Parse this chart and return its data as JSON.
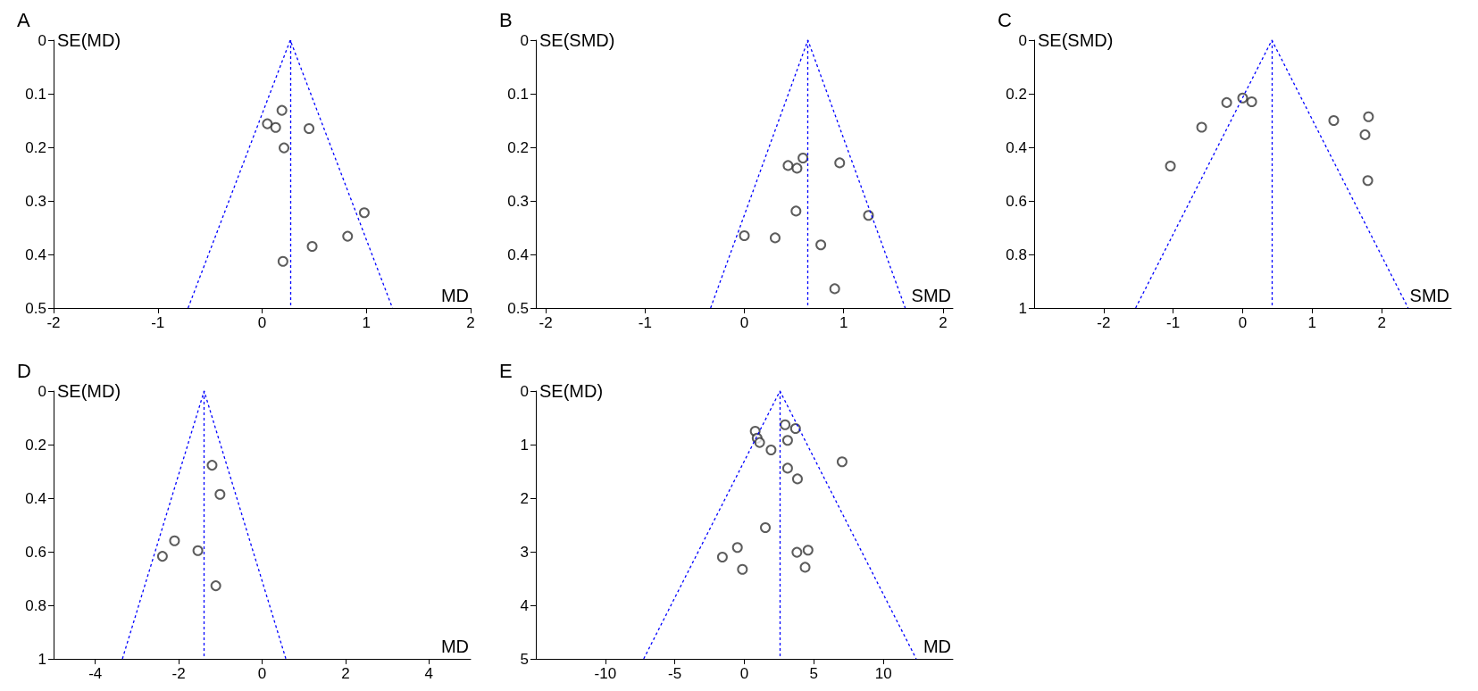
{
  "chart_data": [
    {
      "type": "scatter",
      "title": "A",
      "xlabel": "MD",
      "ylabel": "SE(MD)",
      "xlim": [
        -2,
        2
      ],
      "xticks": [
        -2,
        -1,
        0,
        1,
        2
      ],
      "ylim": [
        0.5,
        0
      ],
      "yticks": [
        0,
        0.1,
        0.2,
        0.3,
        0.4,
        0.5
      ],
      "marker": "circle",
      "series": [
        {
          "color": "#333333",
          "x": [
            0.19,
            0.05,
            0.13,
            0.45,
            0.21,
            0.98,
            0.82,
            0.48,
            0.2
          ],
          "values": [
            0.131,
            0.156,
            0.163,
            0.165,
            0.201,
            0.322,
            0.366,
            0.385,
            0.413
          ]
        },
        {
          "type": "line",
          "color": "#0000ff",
          "line_style": "dashed",
          "marker": "none",
          "x": [
            -0.71,
            0.27,
            1.25
          ],
          "values": [
            0.5,
            0,
            0.5
          ]
        }
      ],
      "ref_lines": [
        {
          "axis": "x",
          "value": 0.27,
          "color": "#0000ff",
          "line_style": "dashed"
        }
      ]
    },
    {
      "type": "scatter",
      "title": "B",
      "xlabel": "SMD",
      "ylabel": "SE(SMD)",
      "xlim": [
        -2.1,
        2.1
      ],
      "xticks": [
        -2,
        -1,
        0,
        1,
        2
      ],
      "ylim": [
        0.5,
        0
      ],
      "yticks": [
        0,
        0.1,
        0.2,
        0.3,
        0.4,
        0.5
      ],
      "marker": "circle",
      "series": [
        {
          "color": "#333333",
          "x": [
            0.59,
            0.44,
            0.53,
            0.96,
            0.52,
            1.25,
            0.0,
            0.31,
            0.77,
            0.91
          ],
          "values": [
            0.22,
            0.234,
            0.239,
            0.229,
            0.319,
            0.327,
            0.365,
            0.369,
            0.382,
            0.464
          ]
        },
        {
          "type": "line",
          "color": "#0000ff",
          "line_style": "dashed",
          "marker": "none",
          "x": [
            -0.34,
            0.64,
            1.62
          ],
          "values": [
            0.5,
            0,
            0.5
          ]
        }
      ],
      "ref_lines": [
        {
          "axis": "x",
          "value": 0.64,
          "color": "#0000ff",
          "line_style": "dashed"
        }
      ]
    },
    {
      "type": "scatter",
      "title": "C",
      "xlabel": "SMD",
      "ylabel": "SE(SMD)",
      "xlim": [
        -3,
        3
      ],
      "xticks": [
        -2,
        -1,
        0,
        1,
        2
      ],
      "ylim": [
        1,
        0
      ],
      "yticks": [
        0,
        0.2,
        0.4,
        0.6,
        0.8,
        1
      ],
      "marker": "circle",
      "series": [
        {
          "color": "#333333",
          "x": [
            0.0,
            -0.23,
            0.13,
            -0.59,
            -1.04,
            1.31,
            1.81,
            1.76,
            1.8
          ],
          "values": [
            0.216,
            0.233,
            0.23,
            0.325,
            0.47,
            0.3,
            0.286,
            0.353,
            0.524
          ]
        },
        {
          "type": "line",
          "color": "#0000ff",
          "line_style": "dashed",
          "marker": "none",
          "x": [
            -1.54,
            0.42,
            2.38
          ],
          "values": [
            1,
            0,
            1
          ]
        }
      ],
      "ref_lines": [
        {
          "axis": "x",
          "value": 0.42,
          "color": "#0000ff",
          "line_style": "dashed"
        }
      ]
    },
    {
      "type": "scatter",
      "title": "D",
      "xlabel": "MD",
      "ylabel": "SE(MD)",
      "xlim": [
        -5,
        5
      ],
      "xticks": [
        -4,
        -2,
        0,
        2,
        4
      ],
      "ylim": [
        1,
        0
      ],
      "yticks": [
        0,
        0.2,
        0.4,
        0.6,
        0.8,
        1
      ],
      "marker": "circle",
      "series": [
        {
          "color": "#333333",
          "x": [
            -1.2,
            -1.01,
            -2.1,
            -1.54,
            -2.39,
            -1.11
          ],
          "values": [
            0.277,
            0.386,
            0.559,
            0.596,
            0.617,
            0.727
          ]
        },
        {
          "type": "line",
          "color": "#0000ff",
          "line_style": "dashed",
          "marker": "none",
          "x": [
            -3.35,
            -1.39,
            0.57
          ],
          "values": [
            1,
            0,
            1
          ]
        }
      ],
      "ref_lines": [
        {
          "axis": "x",
          "value": -1.39,
          "color": "#0000ff",
          "line_style": "dashed"
        }
      ]
    },
    {
      "type": "scatter",
      "title": "E",
      "xlabel": "MD",
      "ylabel": "SE(MD)",
      "xlim": [
        -15,
        15
      ],
      "xticks": [
        -10,
        -5,
        0,
        5,
        10
      ],
      "ylim": [
        5,
        0
      ],
      "yticks": [
        0,
        1,
        2,
        3,
        4,
        5
      ],
      "marker": "circle",
      "series": [
        {
          "color": "#333333",
          "x": [
            2.93,
            3.68,
            0.78,
            0.92,
            1.1,
            3.11,
            1.92,
            7.03,
            3.11,
            3.82,
            1.51,
            -0.5,
            -1.58,
            4.58,
            3.78,
            -0.14,
            4.37
          ],
          "values": [
            0.63,
            0.7,
            0.75,
            0.88,
            0.96,
            0.92,
            1.1,
            1.32,
            1.44,
            1.64,
            2.55,
            2.92,
            3.1,
            2.97,
            3.01,
            3.33,
            3.29
          ]
        },
        {
          "type": "line",
          "color": "#0000ff",
          "line_style": "dashed",
          "marker": "none",
          "x": [
            -7.24,
            2.56,
            12.36
          ],
          "values": [
            5,
            0,
            5
          ]
        }
      ],
      "ref_lines": [
        {
          "axis": "x",
          "value": 2.56,
          "color": "#0000ff",
          "line_style": "dashed"
        }
      ]
    }
  ]
}
